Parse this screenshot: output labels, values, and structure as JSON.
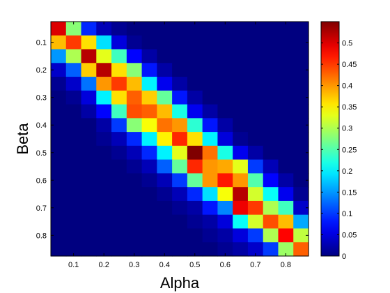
{
  "chart_data": {
    "type": "heatmap",
    "title": "",
    "xlabel": "Alpha",
    "ylabel": "Beta",
    "x_ticks": [
      {
        "value": 0.1,
        "label": "0.1"
      },
      {
        "value": 0.2,
        "label": "0.2"
      },
      {
        "value": 0.3,
        "label": "0.3"
      },
      {
        "value": 0.4,
        "label": "0.4"
      },
      {
        "value": 0.5,
        "label": "0.5"
      },
      {
        "value": 0.6,
        "label": "0.6"
      },
      {
        "value": 0.7,
        "label": "0.7"
      },
      {
        "value": 0.8,
        "label": "0.8"
      }
    ],
    "y_ticks": [
      {
        "value": 0.1,
        "label": "0.1"
      },
      {
        "value": 0.2,
        "label": "0.2"
      },
      {
        "value": 0.3,
        "label": "0.3"
      },
      {
        "value": 0.4,
        "label": "0.4"
      },
      {
        "value": 0.5,
        "label": "0.5"
      },
      {
        "value": 0.6,
        "label": "0.6"
      },
      {
        "value": 0.7,
        "label": "0.7"
      },
      {
        "value": 0.8,
        "label": "0.8"
      }
    ],
    "x_range": [
      0.025,
      0.875
    ],
    "y_range": [
      0.025,
      0.875
    ],
    "x_centers": [
      0.05,
      0.1,
      0.15,
      0.2,
      0.25,
      0.3,
      0.35,
      0.4,
      0.45,
      0.5,
      0.55,
      0.6,
      0.65,
      0.7,
      0.75,
      0.8,
      0.85
    ],
    "y_centers": [
      0.05,
      0.1,
      0.15,
      0.2,
      0.25,
      0.3,
      0.35,
      0.4,
      0.45,
      0.5,
      0.55,
      0.6,
      0.65,
      0.7,
      0.75,
      0.8,
      0.85
    ],
    "y_direction": "top-to-bottom",
    "colormap": "jet",
    "color_range": [
      0,
      0.55
    ],
    "colorbar_ticks": [
      {
        "value": 0,
        "label": "0"
      },
      {
        "value": 0.05,
        "label": "0.05"
      },
      {
        "value": 0.1,
        "label": "0.1"
      },
      {
        "value": 0.15,
        "label": "0.15"
      },
      {
        "value": 0.2,
        "label": "0.2"
      },
      {
        "value": 0.25,
        "label": "0.25"
      },
      {
        "value": 0.3,
        "label": "0.3"
      },
      {
        "value": 0.35,
        "label": "0.35"
      },
      {
        "value": 0.4,
        "label": "0.4"
      },
      {
        "value": 0.45,
        "label": "0.45"
      },
      {
        "value": 0.5,
        "label": "0.5"
      }
    ],
    "colorbar_position": "right",
    "grid": false,
    "values": [
      [
        0.5,
        0.28,
        0.09,
        0.03,
        0.01,
        0.0,
        0.0,
        0.0,
        0.0,
        0.0,
        0.0,
        0.0,
        0.0,
        0.0,
        0.0,
        0.0,
        0.0
      ],
      [
        0.38,
        0.45,
        0.36,
        0.19,
        0.05,
        0.01,
        0.0,
        0.0,
        0.0,
        0.0,
        0.0,
        0.0,
        0.0,
        0.0,
        0.0,
        0.0,
        0.0
      ],
      [
        0.15,
        0.3,
        0.52,
        0.33,
        0.24,
        0.07,
        0.02,
        0.0,
        0.0,
        0.0,
        0.0,
        0.0,
        0.0,
        0.0,
        0.0,
        0.0,
        0.0
      ],
      [
        0.04,
        0.12,
        0.37,
        0.52,
        0.36,
        0.28,
        0.08,
        0.02,
        0.0,
        0.0,
        0.0,
        0.0,
        0.0,
        0.0,
        0.0,
        0.0,
        0.0
      ],
      [
        0.01,
        0.04,
        0.13,
        0.4,
        0.45,
        0.38,
        0.2,
        0.06,
        0.02,
        0.0,
        0.0,
        0.0,
        0.0,
        0.0,
        0.0,
        0.0,
        0.0
      ],
      [
        0.0,
        0.01,
        0.05,
        0.2,
        0.36,
        0.43,
        0.37,
        0.26,
        0.08,
        0.02,
        0.0,
        0.0,
        0.0,
        0.0,
        0.0,
        0.0,
        0.0
      ],
      [
        0.0,
        0.0,
        0.02,
        0.07,
        0.24,
        0.44,
        0.43,
        0.38,
        0.22,
        0.06,
        0.02,
        0.0,
        0.0,
        0.0,
        0.0,
        0.0,
        0.0
      ],
      [
        0.0,
        0.0,
        0.0,
        0.02,
        0.1,
        0.28,
        0.34,
        0.42,
        0.4,
        0.23,
        0.08,
        0.02,
        0.0,
        0.0,
        0.0,
        0.0,
        0.0
      ],
      [
        0.0,
        0.0,
        0.0,
        0.01,
        0.03,
        0.09,
        0.2,
        0.35,
        0.46,
        0.36,
        0.2,
        0.05,
        0.01,
        0.0,
        0.0,
        0.0,
        0.0
      ],
      [
        0.0,
        0.0,
        0.0,
        0.0,
        0.01,
        0.03,
        0.09,
        0.2,
        0.33,
        0.55,
        0.42,
        0.22,
        0.06,
        0.02,
        0.0,
        0.0,
        0.0
      ],
      [
        0.0,
        0.0,
        0.0,
        0.0,
        0.0,
        0.01,
        0.03,
        0.12,
        0.26,
        0.46,
        0.4,
        0.39,
        0.33,
        0.1,
        0.03,
        0.0,
        0.0
      ],
      [
        0.0,
        0.0,
        0.0,
        0.0,
        0.0,
        0.0,
        0.01,
        0.03,
        0.1,
        0.26,
        0.4,
        0.47,
        0.4,
        0.25,
        0.07,
        0.02,
        0.0
      ],
      [
        0.0,
        0.0,
        0.0,
        0.0,
        0.0,
        0.0,
        0.0,
        0.01,
        0.03,
        0.09,
        0.19,
        0.34,
        0.52,
        0.32,
        0.21,
        0.06,
        0.01
      ],
      [
        0.0,
        0.0,
        0.0,
        0.0,
        0.0,
        0.0,
        0.0,
        0.0,
        0.01,
        0.02,
        0.08,
        0.14,
        0.49,
        0.45,
        0.3,
        0.24,
        0.04
      ],
      [
        0.0,
        0.0,
        0.0,
        0.0,
        0.0,
        0.0,
        0.0,
        0.0,
        0.0,
        0.01,
        0.02,
        0.05,
        0.21,
        0.32,
        0.44,
        0.38,
        0.16
      ],
      [
        0.0,
        0.0,
        0.0,
        0.0,
        0.0,
        0.0,
        0.0,
        0.0,
        0.0,
        0.0,
        0.01,
        0.02,
        0.05,
        0.1,
        0.3,
        0.48,
        0.31
      ],
      [
        0.0,
        0.0,
        0.0,
        0.0,
        0.0,
        0.0,
        0.0,
        0.0,
        0.0,
        0.0,
        0.0,
        0.01,
        0.02,
        0.04,
        0.1,
        0.29,
        0.43
      ]
    ]
  }
}
